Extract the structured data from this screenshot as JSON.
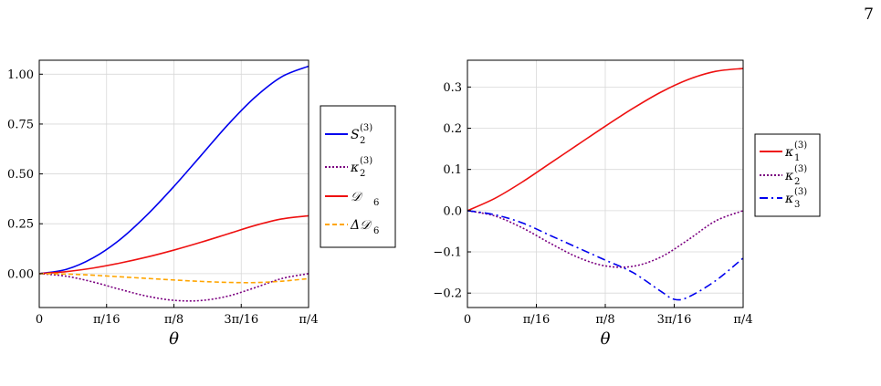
{
  "page": {
    "number": "7"
  },
  "chart_data": [
    {
      "type": "line",
      "title": "",
      "xlabel": "θ",
      "ylabel": "",
      "xlim": [
        0,
        0.7854
      ],
      "ylim": [
        -0.17,
        1.07
      ],
      "grid": true,
      "legend_position": "outside-right",
      "xticks": [
        {
          "value": 0,
          "label": "0"
        },
        {
          "value": 0.19635,
          "label": "π/16"
        },
        {
          "value": 0.3927,
          "label": "π/8"
        },
        {
          "value": 0.58905,
          "label": "3π/16"
        },
        {
          "value": 0.7854,
          "label": "π/4"
        }
      ],
      "yticks": [
        {
          "value": 0,
          "label": "0.00"
        },
        {
          "value": 0.25,
          "label": "0.25"
        },
        {
          "value": 0.5,
          "label": "0.50"
        },
        {
          "value": 0.75,
          "label": "0.75"
        },
        {
          "value": 1.0,
          "label": "1.00"
        }
      ],
      "series": [
        {
          "name": "S",
          "sub": "2",
          "sup": "(3)",
          "color": "#0000ee",
          "dash": "solid",
          "x": [
            0,
            0.0785,
            0.1571,
            0.2356,
            0.3142,
            0.3927,
            0.4712,
            0.5498,
            0.6283,
            0.7069,
            0.7854
          ],
          "y": [
            0,
            0.021,
            0.079,
            0.171,
            0.294,
            0.437,
            0.591,
            0.746,
            0.883,
            0.987,
            1.04
          ]
        },
        {
          "name": "κ",
          "sub": "2",
          "sup": "(3)",
          "color": "#7b0080",
          "dash": "dotted",
          "x": [
            0,
            0.0785,
            0.1571,
            0.2356,
            0.3142,
            0.3927,
            0.4712,
            0.5498,
            0.6283,
            0.7069,
            0.7854
          ],
          "y": [
            0,
            -0.013,
            -0.042,
            -0.079,
            -0.113,
            -0.134,
            -0.135,
            -0.113,
            -0.071,
            -0.025,
            0
          ]
        },
        {
          "name": "𝒟",
          "sub": "6",
          "sup": "",
          "color": "#ee1111",
          "dash": "solid",
          "x": [
            0,
            0.0785,
            0.1571,
            0.2356,
            0.3142,
            0.3927,
            0.4712,
            0.5498,
            0.6283,
            0.7069,
            0.7854
          ],
          "y": [
            0,
            0.01,
            0.028,
            0.053,
            0.083,
            0.118,
            0.157,
            0.199,
            0.241,
            0.274,
            0.29
          ]
        },
        {
          "name": "Δ𝒟",
          "sub": "6",
          "sup": "",
          "color": "#ffa500",
          "dash": "dashed",
          "x": [
            0,
            0.0785,
            0.1571,
            0.2356,
            0.3142,
            0.3927,
            0.4712,
            0.5498,
            0.6283,
            0.7069,
            0.7854
          ],
          "y": [
            0,
            -0.002,
            -0.008,
            -0.016,
            -0.024,
            -0.032,
            -0.039,
            -0.044,
            -0.045,
            -0.038,
            -0.025
          ]
        }
      ]
    },
    {
      "type": "line",
      "title": "",
      "xlabel": "θ",
      "ylabel": "",
      "xlim": [
        0,
        0.7854
      ],
      "ylim": [
        -0.235,
        0.365
      ],
      "grid": true,
      "legend_position": "outside-right",
      "xticks": [
        {
          "value": 0,
          "label": "0"
        },
        {
          "value": 0.19635,
          "label": "π/16"
        },
        {
          "value": 0.3927,
          "label": "π/8"
        },
        {
          "value": 0.58905,
          "label": "3π/16"
        },
        {
          "value": 0.7854,
          "label": "π/4"
        }
      ],
      "yticks": [
        {
          "value": -0.2,
          "label": "−0.2"
        },
        {
          "value": -0.1,
          "label": "−0.1"
        },
        {
          "value": 0,
          "label": "0.0"
        },
        {
          "value": 0.1,
          "label": "0.1"
        },
        {
          "value": 0.2,
          "label": "0.2"
        },
        {
          "value": 0.3,
          "label": "0.3"
        }
      ],
      "series": [
        {
          "name": "κ",
          "sub": "1",
          "sup": "(3)",
          "color": "#ee1111",
          "dash": "solid",
          "x": [
            0,
            0.0785,
            0.1571,
            0.2356,
            0.3142,
            0.3927,
            0.4712,
            0.5498,
            0.6283,
            0.7069,
            0.7854
          ],
          "y": [
            0,
            0.03,
            0.07,
            0.115,
            0.16,
            0.205,
            0.248,
            0.287,
            0.318,
            0.338,
            0.345
          ]
        },
        {
          "name": "κ",
          "sub": "2",
          "sup": "(3)",
          "color": "#7b0080",
          "dash": "dotted",
          "x": [
            0,
            0.0785,
            0.1571,
            0.2356,
            0.3142,
            0.3927,
            0.4712,
            0.5498,
            0.6283,
            0.7069,
            0.7854
          ],
          "y": [
            0,
            -0.013,
            -0.042,
            -0.079,
            -0.113,
            -0.134,
            -0.135,
            -0.113,
            -0.071,
            -0.025,
            0
          ]
        },
        {
          "name": "κ",
          "sub": "3",
          "sup": "(3)",
          "color": "#0000ee",
          "dash": "dashdot",
          "x": [
            0,
            0.0785,
            0.1571,
            0.2356,
            0.3142,
            0.3927,
            0.4712,
            0.5498,
            0.589,
            0.6283,
            0.7069,
            0.7854
          ],
          "y": [
            0,
            -0.01,
            -0.03,
            -0.06,
            -0.09,
            -0.12,
            -0.15,
            -0.195,
            -0.215,
            -0.21,
            -0.17,
            -0.115
          ]
        }
      ]
    }
  ]
}
